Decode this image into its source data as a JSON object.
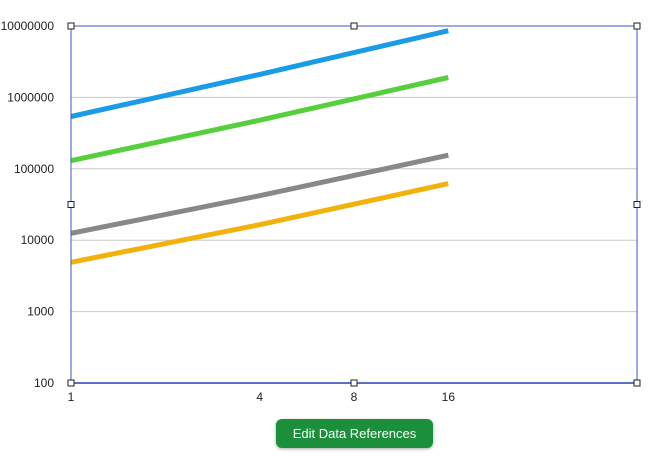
{
  "chart_data": {
    "type": "line",
    "x_scale": "log2",
    "y_scale": "log10",
    "x": [
      1,
      4,
      16
    ],
    "x_ticks": [
      "1",
      "4",
      "8",
      "16"
    ],
    "y_ticks": [
      "100",
      "1000",
      "10000",
      "100000",
      "1000000",
      "10000000"
    ],
    "xlim": [
      1,
      64
    ],
    "ylim": [
      100,
      10000000
    ],
    "grid": true,
    "series": [
      {
        "values": [
          540000,
          2100000,
          8600000
        ],
        "color": "#1a9be8"
      },
      {
        "values": [
          130000,
          480000,
          1900000
        ],
        "color": "#56cf3c"
      },
      {
        "values": [
          12500,
          42000,
          155000
        ],
        "color": "#888888"
      },
      {
        "values": [
          4900,
          16500,
          62000
        ],
        "color": "#f2b20e"
      }
    ]
  },
  "button": {
    "label": "Edit Data References",
    "color": "#1b8f3c"
  }
}
